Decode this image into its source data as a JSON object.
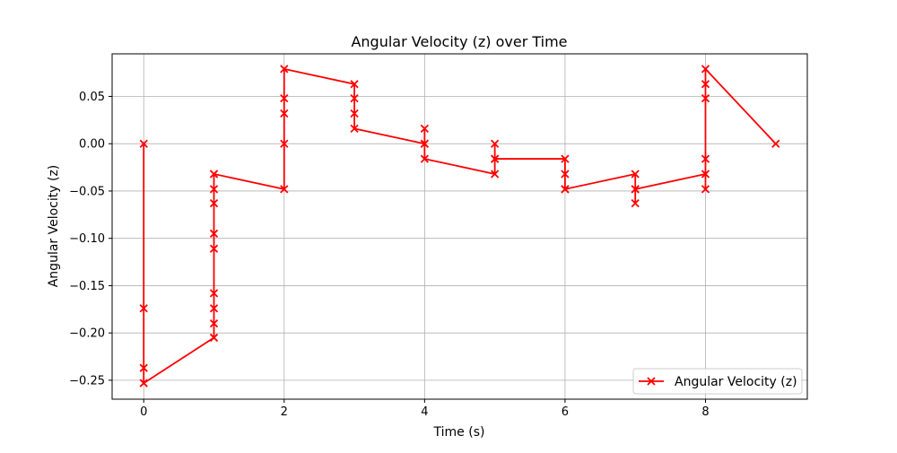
{
  "chart_data": {
    "type": "line",
    "title": "Angular Velocity (z) over Time",
    "xlabel": "Time (s)",
    "ylabel": "Angular Velocity (z)",
    "xlim": [
      -0.45,
      9.45
    ],
    "ylim": [
      -0.27,
      0.095
    ],
    "x_ticks": [
      0,
      2,
      4,
      6,
      8
    ],
    "x_tick_labels": [
      "0",
      "2",
      "4",
      "6",
      "8"
    ],
    "y_ticks": [
      0.05,
      0.0,
      -0.05,
      -0.1,
      -0.15,
      -0.2,
      -0.25
    ],
    "y_tick_labels": [
      "0.05",
      "0.00",
      "−0.05",
      "−0.10",
      "−0.15",
      "−0.20",
      "−0.25"
    ],
    "grid": true,
    "legend_position": "lower-right",
    "series": [
      {
        "name": "Angular Velocity (z)",
        "color": "#ff0000",
        "marker": "x",
        "x": [
          0,
          0,
          0,
          0,
          1,
          1,
          1,
          1,
          1,
          1,
          1,
          1,
          1,
          1,
          2,
          2,
          2,
          2,
          2,
          3,
          3,
          3,
          3,
          4,
          4,
          4,
          4,
          5,
          5,
          5,
          5,
          6,
          6,
          6,
          6,
          7,
          7,
          7,
          7,
          8,
          8,
          8,
          8,
          8,
          8,
          9
        ],
        "y": [
          0.0,
          -0.174,
          -0.237,
          -0.253,
          -0.205,
          -0.19,
          -0.174,
          -0.158,
          -0.111,
          -0.095,
          -0.063,
          -0.048,
          -0.032,
          -0.032,
          -0.048,
          0.0,
          0.032,
          0.048,
          0.079,
          0.063,
          0.048,
          0.032,
          0.016,
          0.0,
          0.016,
          0.0,
          -0.016,
          -0.032,
          -0.016,
          0.0,
          -0.016,
          -0.016,
          -0.032,
          -0.048,
          -0.048,
          -0.032,
          -0.063,
          -0.048,
          -0.048,
          -0.032,
          -0.048,
          -0.016,
          0.048,
          0.063,
          0.079,
          0.0
        ]
      }
    ]
  }
}
